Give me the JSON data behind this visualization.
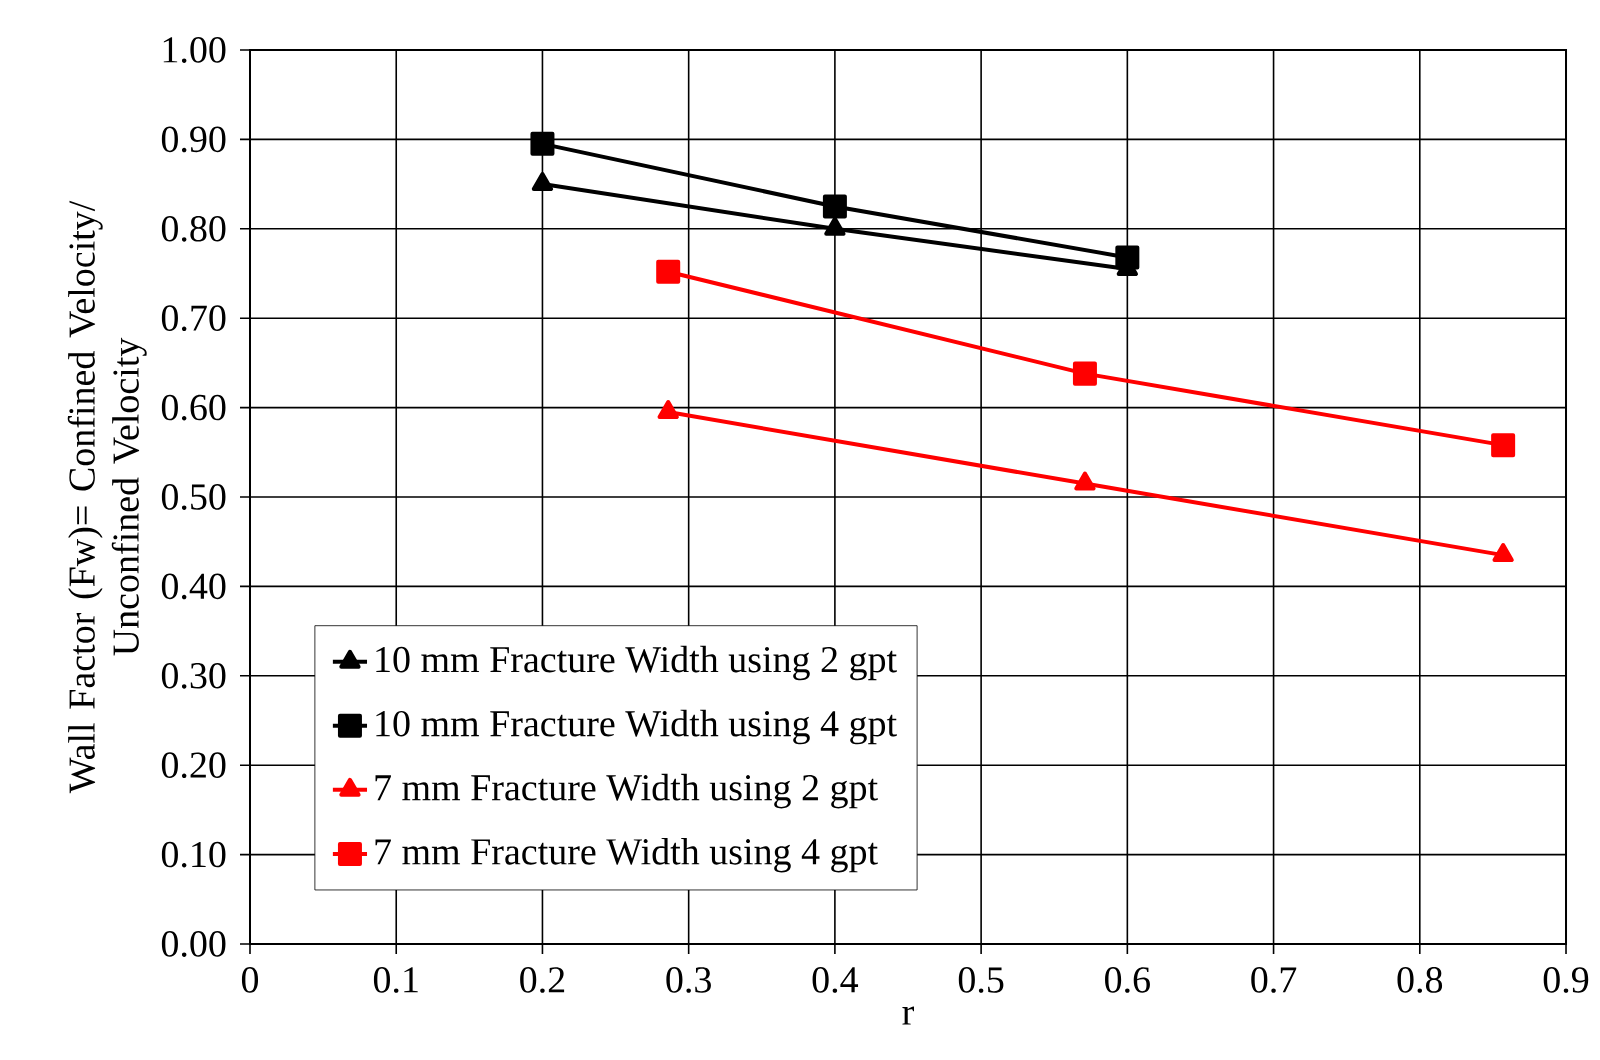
{
  "chart_data": {
    "type": "line",
    "xlabel": "r",
    "ylabel": "Wall Factor (Fw)= Confined Velocity/\nUnconfined Velocity",
    "xlim": [
      0,
      0.9
    ],
    "xticks": [
      0,
      0.1,
      0.2,
      0.3,
      0.4,
      0.5,
      0.6,
      0.7,
      0.8,
      0.9
    ],
    "ylim": [
      0,
      1
    ],
    "yticks": [
      {
        "value": 0,
        "label": "0.00"
      },
      {
        "value": 0.1,
        "label": "0.10"
      },
      {
        "value": 0.2,
        "label": "0.20"
      },
      {
        "value": 0.3,
        "label": "0.30"
      },
      {
        "value": 0.4,
        "label": "0.40"
      },
      {
        "value": 0.5,
        "label": "0.50"
      },
      {
        "value": 0.6,
        "label": "0.60"
      },
      {
        "value": 0.7,
        "label": "0.70"
      },
      {
        "value": 0.8,
        "label": "0.80"
      },
      {
        "value": 0.9,
        "label": "0.90"
      },
      {
        "value": 1,
        "label": "1.00"
      }
    ],
    "grid": true,
    "legend": "bottom left",
    "line_style": "solid",
    "series": [
      {
        "name": "10 mm Fracture Width using 2 gpt",
        "color": "#000000",
        "marker": "triangle",
        "x": [
          0.2,
          0.4,
          0.6
        ],
        "values": [
          0.85,
          0.8,
          0.755
        ]
      },
      {
        "name": "10 mm Fracture Width using 4 gpt",
        "color": "#000000",
        "marker": "square",
        "x": [
          0.2,
          0.4,
          0.6
        ],
        "values": [
          0.895,
          0.825,
          0.768
        ]
      },
      {
        "name": "7 mm Fracture Width using 2 gpt",
        "color": "#ff0000",
        "marker": "triangle",
        "x": [
          0.286,
          0.571,
          0.857
        ],
        "values": [
          0.595,
          0.515,
          0.435
        ]
      },
      {
        "name": "7 mm Fracture Width using 4 gpt",
        "color": "#ff0000",
        "marker": "square",
        "x": [
          0.286,
          0.571,
          0.857
        ],
        "values": [
          0.752,
          0.638,
          0.558
        ]
      }
    ]
  }
}
